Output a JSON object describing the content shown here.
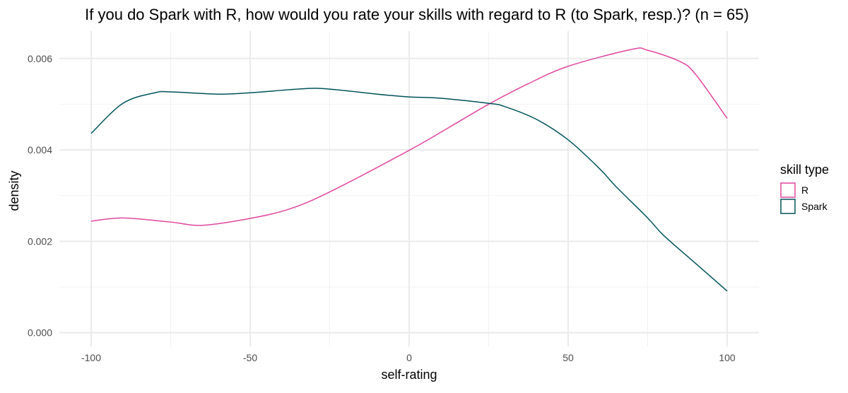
{
  "chart_data": {
    "type": "line",
    "title": "If you do Spark with R, how would you rate your skills with regard to R (to Spark, resp.)? (n = 65)",
    "xlabel": "self-rating",
    "ylabel": "density",
    "xlim": [
      -110,
      110
    ],
    "ylim": [
      -0.0003,
      0.0066
    ],
    "x_ticks": [
      -100,
      -50,
      0,
      50,
      100
    ],
    "x_tick_labels": [
      "-100",
      "-50",
      "0",
      "50",
      "100"
    ],
    "y_ticks": [
      0,
      0.002,
      0.004,
      0.006
    ],
    "y_tick_labels": [
      "0.000",
      "0.002",
      "0.004",
      "0.006"
    ],
    "grid": true,
    "legend": {
      "title": "skill type",
      "placement": "right"
    },
    "series": [
      {
        "name": "R",
        "color": "#e0479e",
        "x": [
          -100,
          -90,
          -75,
          -65,
          -50,
          -37.5,
          -25,
          0,
          12.5,
          25,
          37.5,
          50,
          70,
          75,
          85,
          90,
          100
        ],
        "y": [
          0.00244,
          0.00251,
          0.00242,
          0.00235,
          0.0025,
          0.00271,
          0.00308,
          0.00399,
          0.00449,
          0.005,
          0.00545,
          0.00583,
          0.0062,
          0.00618,
          0.00594,
          0.00566,
          0.00469
        ]
      },
      {
        "name": "Spark",
        "color": "#00535a",
        "x": [
          -100,
          -90,
          -80,
          -75,
          -60,
          -50,
          -33,
          -25,
          -10,
          0,
          10,
          25,
          30,
          40,
          50,
          60,
          65,
          75,
          80,
          90,
          100
        ],
        "y": [
          0.00436,
          0.00502,
          0.00525,
          0.00527,
          0.00522,
          0.00525,
          0.00534,
          0.00533,
          0.00522,
          0.00516,
          0.00513,
          0.00502,
          0.00495,
          0.00467,
          0.00422,
          0.00358,
          0.0032,
          0.00251,
          0.00213,
          0.00152,
          0.00091
        ]
      }
    ]
  }
}
